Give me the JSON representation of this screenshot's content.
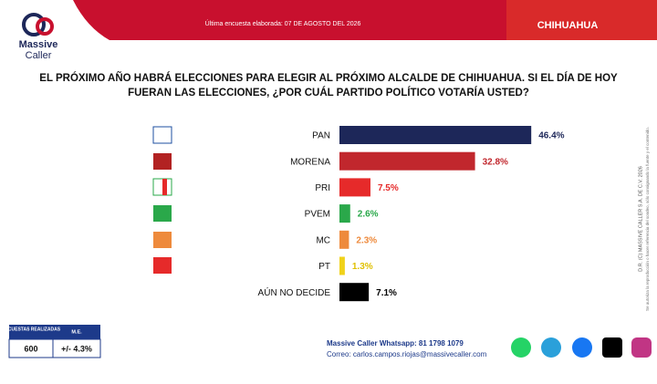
{
  "brand": {
    "line1": "Massive",
    "line2": "Caller"
  },
  "header": {
    "subtitle": "Última encuesta elaborada: 07 DE AGOSTO DEL 2026",
    "region": "CHIHUAHUA"
  },
  "question": {
    "line1": "EL PRÓXIMO AÑO HABRÁ ELECCIONES PARA ELEGIR AL PRÓXIMO ALCALDE DE CHIHUAHUA. SI EL DÍA DE HOY",
    "line2": "FUERAN LAS ELECCIONES, ",
    "line2_bold": "¿POR CUÁL PARTIDO POLÍTICO VOTARÍA USTED?"
  },
  "chart_data": {
    "type": "bar",
    "orientation": "horizontal",
    "categories": [
      "PAN",
      "MORENA",
      "PRI",
      "PVEM",
      "MC",
      "PT",
      "AÚN NO DECIDE"
    ],
    "values": [
      46.4,
      32.8,
      7.5,
      2.6,
      2.3,
      1.3,
      7.1
    ],
    "value_labels": [
      "46.4%",
      "32.8%",
      "7.5%",
      "2.6%",
      "2.3%",
      "1.3%",
      "7.1%"
    ],
    "colors": [
      "#1d2759",
      "#c1272d",
      "#e62a2a",
      "#2aa84a",
      "#ee8a3c",
      "#f0d21a",
      "#000000"
    ],
    "label_colors": [
      "#1d2759",
      "#c1272d",
      "#e62a2a",
      "#2aa84a",
      "#ee8a3c",
      "#e0c000",
      "#000000"
    ]
  },
  "sidebar": {
    "line1": "D.R. (C) MASSIVE CALLER S.A. DE C.V. 2026",
    "line2": "Se autoriza la reproducción o hacer referencia del sondeo, sólo consignando la fuente y el contenido."
  },
  "survey_table": {
    "headers": [
      "ENCUESTAS REALIZADAS",
      "M.E."
    ],
    "row": [
      "600",
      "+/- 4.3%"
    ]
  },
  "footer": {
    "whatsapp": "Massive Caller Whatsapp: 81 1798 1079",
    "email": "Correo: carlos.campos.riojas@massivecaller.com"
  }
}
